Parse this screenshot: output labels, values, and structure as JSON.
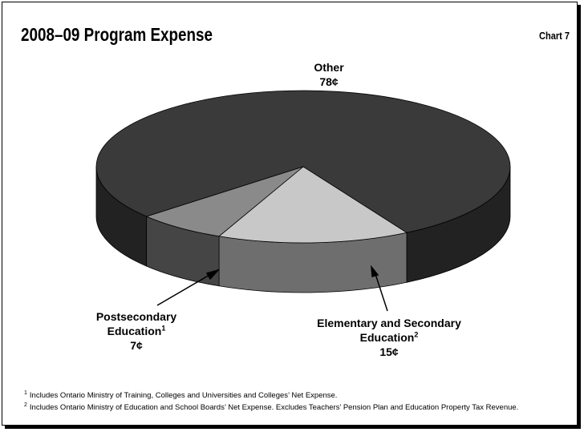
{
  "chart_data": {
    "type": "pie3d",
    "title": "2008–09 Program Expense",
    "chart_number": "Chart 7",
    "categories": [
      "Other",
      "Elementary and Secondary Education",
      "Postsecondary Education"
    ],
    "category_notes": [
      null,
      "2",
      "1"
    ],
    "values": [
      78,
      15,
      7
    ],
    "value_labels": [
      "78¢",
      "15¢",
      "7¢"
    ],
    "colors": [
      "#3a3a3a",
      "#c8c8c8",
      "#8a8a8a"
    ],
    "side_colors": [
      "#222222",
      "#6e6e6e",
      "#454545"
    ],
    "footnotes": [
      {
        "marker": "1",
        "text": "Includes Ontario Ministry of Training, Colleges and Universities and Colleges’ Net Expense."
      },
      {
        "marker": "2",
        "text": "Includes Ontario Ministry of Education and School Boards’ Net Expense. Excludes Teachers’ Pension Plan and Education Property Tax Revenue."
      }
    ]
  }
}
